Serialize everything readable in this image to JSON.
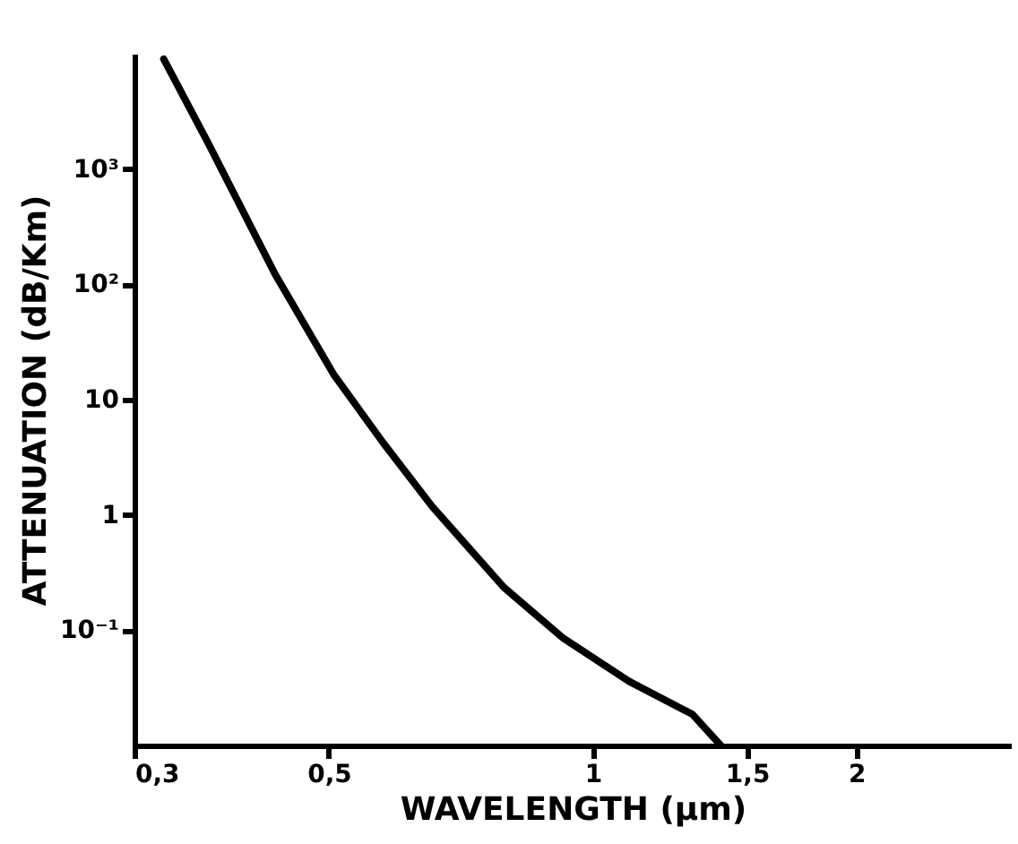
{
  "chart_data": {
    "type": "line",
    "xlabel": "WAVELENGTH (µm)",
    "ylabel": "ATTENUATION (dB/Km)",
    "log": "xy",
    "x": [
      0.324,
      0.364,
      0.434,
      0.507,
      0.577,
      0.656,
      0.792,
      0.926,
      1.1,
      1.3,
      1.4
    ],
    "values": [
      9000,
      1690,
      123,
      16.3,
      4.2,
      1.18,
      0.235,
      0.085,
      0.036,
      0.0186,
      0.01
    ],
    "color": "#000000",
    "line_style": "solid",
    "xlim": [
      0.3,
      3
    ],
    "ylim": [
      0.01,
      10000
    ],
    "xticks": [
      {
        "value": 0.3,
        "label": "0,3"
      },
      {
        "value": 0.5,
        "label": "0,5"
      },
      1,
      {
        "value": 1.5,
        "label": "1,5"
      },
      2
    ],
    "yticks": [
      {
        "value": 0.1,
        "label": "10⁻¹"
      },
      1,
      10,
      {
        "value": 100,
        "label": "10²"
      },
      {
        "value": 1000,
        "label": "10³"
      }
    ]
  }
}
